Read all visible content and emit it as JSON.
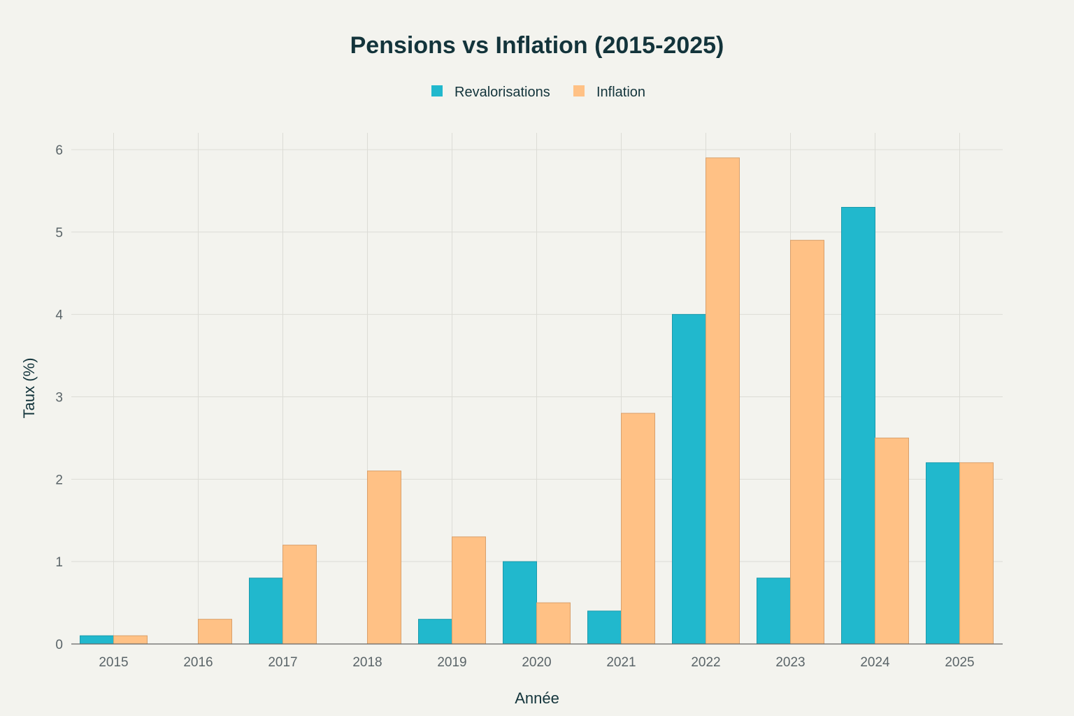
{
  "chart_data": {
    "type": "bar",
    "title": "Pensions vs Inflation (2015-2025)",
    "xlabel": "Année",
    "ylabel": "Taux (%)",
    "categories": [
      "2015",
      "2016",
      "2017",
      "2018",
      "2019",
      "2020",
      "2021",
      "2022",
      "2023",
      "2024",
      "2025"
    ],
    "series": [
      {
        "name": "Revalorisations",
        "color": "#21b8cd",
        "values": [
          0.1,
          0,
          0.8,
          0,
          0.3,
          1.0,
          0.4,
          4.0,
          0.8,
          5.3,
          2.2
        ]
      },
      {
        "name": "Inflation",
        "color": "#ffc185",
        "values": [
          0.1,
          0.3,
          1.2,
          2.1,
          1.3,
          0.5,
          2.8,
          5.9,
          4.9,
          2.5,
          2.2
        ]
      }
    ],
    "yticks": [
      0,
      1,
      2,
      3,
      4,
      5,
      6
    ],
    "ylim": [
      0,
      6.2
    ],
    "grid": true,
    "legend_position": "top-center"
  }
}
